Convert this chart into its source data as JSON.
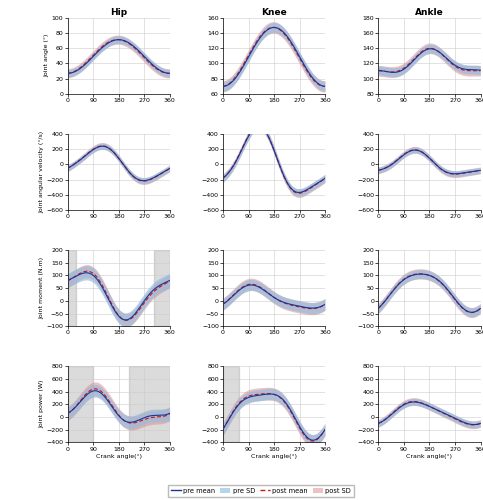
{
  "col_titles": [
    "Hip",
    "Knee",
    "Ankle"
  ],
  "row_ylabels": [
    "Joint angle (°)",
    "Joint angular velocity (°/s)",
    "Joint moment (N.m)",
    "Joint power (W)"
  ],
  "xlabel": "Crank angle(°)",
  "xticks": [
    0,
    90,
    180,
    270,
    360
  ],
  "ylims": [
    [
      [
        0,
        100
      ],
      [
        60,
        160
      ],
      [
        80,
        180
      ]
    ],
    [
      [
        -600,
        400
      ],
      [
        -600,
        400
      ],
      [
        -600,
        400
      ]
    ],
    [
      [
        -100,
        200
      ],
      [
        -100,
        200
      ],
      [
        -100,
        200
      ]
    ],
    [
      [
        -400,
        800
      ],
      [
        -400,
        800
      ],
      [
        -400,
        800
      ]
    ]
  ],
  "yticks": [
    [
      [
        0,
        20,
        40,
        60,
        80,
        100
      ],
      [
        60,
        80,
        100,
        120,
        140,
        160
      ],
      [
        80,
        100,
        120,
        140,
        160,
        180
      ]
    ],
    [
      [
        -600,
        -400,
        -200,
        0,
        200,
        400
      ],
      [
        -600,
        -400,
        -200,
        0,
        200,
        400
      ],
      [
        -600,
        -400,
        -200,
        0,
        200,
        400
      ]
    ],
    [
      [
        -100,
        -50,
        0,
        50,
        100,
        150,
        200
      ],
      [
        -100,
        -50,
        0,
        50,
        100,
        150,
        200
      ],
      [
        -100,
        -50,
        0,
        50,
        100,
        150,
        200
      ]
    ],
    [
      [
        -400,
        -200,
        0,
        200,
        400,
        600,
        800
      ],
      [
        -400,
        -200,
        0,
        200,
        400,
        600,
        800
      ],
      [
        -400,
        -200,
        0,
        200,
        400,
        600,
        800
      ]
    ]
  ],
  "pre_color": "#1a3399",
  "post_color": "#cc1111",
  "pre_sd_color": "#90bde0",
  "post_sd_color": "#e09090",
  "pre_sd_alpha": 0.65,
  "post_sd_alpha": 0.55,
  "shading_color": "#999999",
  "shading_alpha": 0.35,
  "n_points": 360
}
